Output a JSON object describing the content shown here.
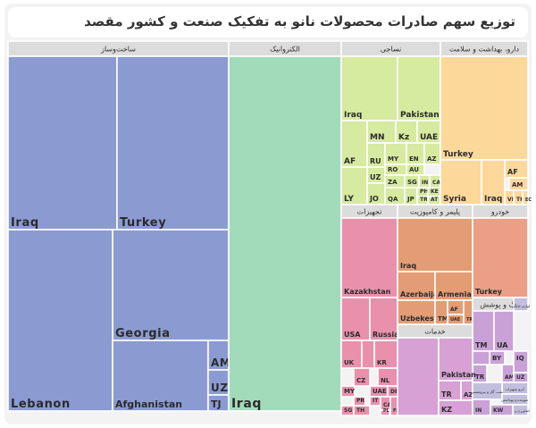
{
  "title": "توزیع سهم صادرات محصولات نانو به تفکیک صنعت و کشور مقصد",
  "chart_data": {
    "type": "treemap",
    "title": "توزیع سهم صادرات محصولات نانو به تفکیک صنعت و کشور مقصد",
    "colors": {
      "construction": "#8b9bd2",
      "electro": "#a2dbb9",
      "textile": "#d6eaa0",
      "health": "#fdd89b",
      "equipment": "#e990ad",
      "polymer": "#e39c74",
      "automotive": "#ea9f86",
      "paint": "#c9a1d6",
      "services": "#d7a1d5",
      "misc": "#c2bedd",
      "header": "#dcdcdc"
    },
    "sectors": [
      {
        "key": "construction",
        "label": "ساخت‌وساز",
        "countries": [
          "Iraq",
          "Turkey",
          "Georgia",
          "Lebanon",
          "Afghanistan",
          "AM",
          "UZ",
          "TJ"
        ]
      },
      {
        "key": "electro",
        "label": "الکتروانیک",
        "countries": [
          "Iraq"
        ]
      },
      {
        "key": "textile",
        "label": "نساجی",
        "countries": [
          "Iraq",
          "Pakistan",
          "AF",
          "MN",
          "Kz",
          "UAE",
          "RU",
          "MY",
          "EN",
          "AZ",
          "RO",
          "AU",
          "UZ",
          "ZA",
          "SG",
          "IN",
          "CA",
          "LY",
          "JO",
          "QA",
          "JP",
          "PH",
          "TR",
          "KE",
          "AT"
        ]
      },
      {
        "key": "health",
        "label": "دارو، بهداشت و سلامت",
        "countries": [
          "Turkey",
          "AF",
          "AM",
          "Syria",
          "Iraq",
          "VE",
          "TH",
          "EC"
        ]
      },
      {
        "key": "equipment",
        "label": "تجهیزات",
        "countries": [
          "Kazakhstan",
          "USA",
          "Russia",
          "UK",
          "KR",
          "CZ",
          "NL",
          "MY",
          "UAE",
          "DE",
          "PR",
          "IT",
          "SG",
          "TH",
          "CA",
          "PL",
          "FR"
        ]
      },
      {
        "key": "polymer",
        "label": "پلیمر و کامپوزیت",
        "countries": [
          "Iraq",
          "Azerbaijan",
          "Armenia",
          "Uzbekestan",
          "TM",
          "AF",
          "UAE",
          "TR"
        ]
      },
      {
        "key": "automotive",
        "label": "خودرو",
        "countries": [
          "Turkey"
        ]
      },
      {
        "key": "paint",
        "label": "رنگ و پوشش",
        "countries": [
          "TM",
          "UA",
          "BY",
          "IQ",
          "TR",
          "AM",
          "UZ",
          "IN",
          "KW"
        ]
      },
      {
        "key": "services",
        "label": "خدمات",
        "countries": [
          "Pakistan",
          "TR",
          "AZ",
          "KZ"
        ]
      },
      {
        "key": "misc",
        "labels": [
          "لوازم خانگی",
          "آبرو تجهیزات",
          "نفت، گاز و پتروشیمی",
          "شوینده و بهداشتی",
          "کشاورزی و غذا"
        ]
      }
    ]
  }
}
